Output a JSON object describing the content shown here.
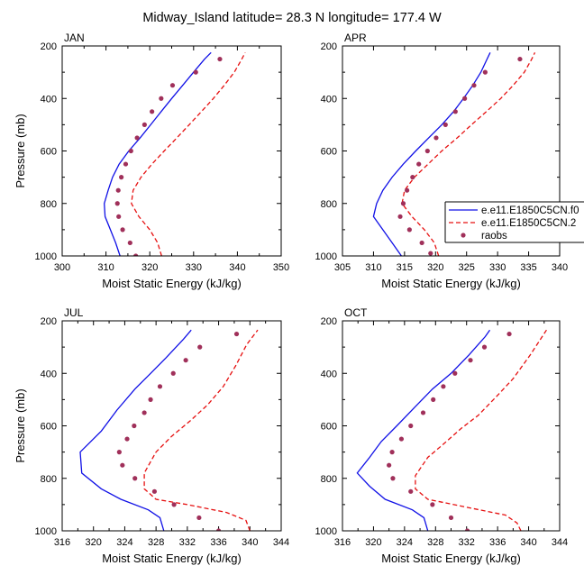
{
  "figure": {
    "title": "Midway_Island  latitude= 28.3 N longitude= 177.4 W"
  },
  "legend": {
    "placement": "right of APR panel",
    "entries": [
      {
        "label": "e.e11.E1850C5CN.f0",
        "color": "#1010e6",
        "style": "solid"
      },
      {
        "label": "e.e11.E1850C5CN.2",
        "color": "#e61010",
        "style": "dashed"
      },
      {
        "label": "raobs",
        "color": "#a0305a",
        "style": "marker"
      }
    ]
  },
  "colors": {
    "series1": "#1010e6",
    "series2": "#e61010",
    "raobs": "#a0305a"
  },
  "chart_data": [
    {
      "type": "line",
      "panel": "JAN",
      "xlabel": "Moist Static Energy (kJ/kg)",
      "ylabel": "Pressure (mb)",
      "xlim": [
        300,
        350
      ],
      "ylim": [
        1000,
        200
      ],
      "y_inverted": true,
      "xticks": [
        300,
        305,
        310,
        315,
        320,
        325,
        330,
        335,
        340,
        345,
        350
      ],
      "xtick_labels": [
        "300",
        "310",
        "320",
        "330",
        "340",
        "350"
      ],
      "yticks": [
        200,
        400,
        600,
        800,
        1000
      ],
      "series": [
        {
          "values": [
            [
              313.2,
              1000
            ],
            [
              312.2,
              950
            ],
            [
              311.0,
              900
            ],
            [
              309.8,
              850
            ],
            [
              309.6,
              800
            ],
            [
              310.5,
              750
            ],
            [
              311.5,
              700
            ],
            [
              313.0,
              650
            ],
            [
              315.2,
              600
            ],
            [
              317.8,
              550
            ],
            [
              320.2,
              500
            ],
            [
              322.6,
              450
            ],
            [
              325.0,
              400
            ],
            [
              327.5,
              350
            ],
            [
              330.0,
              300
            ],
            [
              332.5,
              250
            ],
            [
              334.0,
              225
            ]
          ]
        },
        {
          "values": [
            [
              322.7,
              1000
            ],
            [
              321.8,
              950
            ],
            [
              320.0,
              900
            ],
            [
              317.5,
              850
            ],
            [
              315.8,
              800
            ],
            [
              316.2,
              750
            ],
            [
              318.0,
              700
            ],
            [
              320.5,
              650
            ],
            [
              323.3,
              600
            ],
            [
              326.2,
              550
            ],
            [
              329.0,
              500
            ],
            [
              331.8,
              450
            ],
            [
              334.5,
              400
            ],
            [
              337.0,
              350
            ],
            [
              339.3,
              300
            ],
            [
              341.0,
              250
            ],
            [
              341.8,
              225
            ]
          ]
        },
        {
          "markers": true,
          "values": [
            [
              316.8,
              1000
            ],
            [
              315.5,
              950
            ],
            [
              313.8,
              900
            ],
            [
              312.9,
              850
            ],
            [
              312.6,
              800
            ],
            [
              312.8,
              750
            ],
            [
              313.5,
              700
            ],
            [
              314.5,
              650
            ],
            [
              315.7,
              600
            ],
            [
              317.1,
              550
            ],
            [
              318.8,
              500
            ],
            [
              320.5,
              450
            ],
            [
              322.6,
              400
            ],
            [
              325.2,
              350
            ],
            [
              330.5,
              300
            ],
            [
              336.0,
              250
            ]
          ]
        }
      ]
    },
    {
      "type": "line",
      "panel": "APR",
      "xlabel": "Moist Static Energy (kJ/kg)",
      "ylabel": "",
      "xlim": [
        305,
        340
      ],
      "ylim": [
        1000,
        200
      ],
      "y_inverted": true,
      "xticks": [
        305,
        310,
        315,
        320,
        325,
        330,
        335,
        340
      ],
      "xtick_labels": [
        "305",
        "310",
        "315",
        "320",
        "325",
        "330",
        "335",
        "340"
      ],
      "yticks": [
        200,
        400,
        600,
        800,
        1000
      ],
      "series": [
        {
          "values": [
            [
              314.5,
              1000
            ],
            [
              313.0,
              950
            ],
            [
              311.5,
              900
            ],
            [
              310.0,
              850
            ],
            [
              310.5,
              800
            ],
            [
              311.5,
              750
            ],
            [
              313.0,
              700
            ],
            [
              314.8,
              650
            ],
            [
              316.8,
              600
            ],
            [
              318.9,
              550
            ],
            [
              321.0,
              500
            ],
            [
              322.9,
              450
            ],
            [
              324.5,
              400
            ],
            [
              326.0,
              350
            ],
            [
              327.3,
              300
            ],
            [
              328.3,
              250
            ],
            [
              328.8,
              225
            ]
          ]
        },
        {
          "values": [
            [
              320.5,
              1000
            ],
            [
              319.8,
              950
            ],
            [
              318.2,
              900
            ],
            [
              316.2,
              850
            ],
            [
              314.6,
              800
            ],
            [
              315.0,
              750
            ],
            [
              316.6,
              700
            ],
            [
              318.8,
              650
            ],
            [
              321.0,
              600
            ],
            [
              323.5,
              550
            ],
            [
              325.8,
              500
            ],
            [
              328.2,
              450
            ],
            [
              330.5,
              400
            ],
            [
              332.5,
              350
            ],
            [
              334.3,
              300
            ],
            [
              335.5,
              250
            ],
            [
              336.0,
              225
            ]
          ]
        },
        {
          "markers": true,
          "values": [
            [
              319.2,
              990
            ],
            [
              317.8,
              950
            ],
            [
              315.8,
              900
            ],
            [
              314.3,
              850
            ],
            [
              314.8,
              800
            ],
            [
              315.4,
              750
            ],
            [
              316.3,
              700
            ],
            [
              317.3,
              650
            ],
            [
              318.7,
              600
            ],
            [
              320.1,
              550
            ],
            [
              321.6,
              500
            ],
            [
              323.2,
              450
            ],
            [
              324.7,
              400
            ],
            [
              326.2,
              350
            ],
            [
              328.0,
              300
            ],
            [
              333.6,
              250
            ]
          ]
        }
      ]
    },
    {
      "type": "line",
      "panel": "JUL",
      "xlabel": "Moist Static Energy (kJ/kg)",
      "ylabel": "Pressure (mb)",
      "xlim": [
        316,
        344
      ],
      "ylim": [
        1000,
        200
      ],
      "y_inverted": true,
      "xticks": [
        316,
        318,
        320,
        322,
        324,
        326,
        328,
        330,
        332,
        334,
        336,
        338,
        340,
        342,
        344
      ],
      "xtick_labels": [
        "316",
        "320",
        "324",
        "328",
        "332",
        "336",
        "340",
        "344"
      ],
      "yticks": [
        200,
        400,
        600,
        800,
        1000
      ],
      "series": [
        {
          "values": [
            [
              329.0,
              1000
            ],
            [
              328.5,
              950
            ],
            [
              327.0,
              920
            ],
            [
              323.5,
              880
            ],
            [
              321.0,
              840
            ],
            [
              318.5,
              780
            ],
            [
              318.3,
              700
            ],
            [
              321.0,
              620
            ],
            [
              323.0,
              540
            ],
            [
              325.3,
              460
            ],
            [
              327.3,
              400
            ],
            [
              329.3,
              340
            ],
            [
              331.5,
              270
            ],
            [
              332.5,
              235
            ]
          ]
        },
        {
          "values": [
            [
              340.0,
              1000
            ],
            [
              339.5,
              960
            ],
            [
              337.0,
              930
            ],
            [
              332.0,
              900
            ],
            [
              328.0,
              880
            ],
            [
              326.5,
              840
            ],
            [
              326.5,
              780
            ],
            [
              328.0,
              700
            ],
            [
              330.0,
              640
            ],
            [
              332.4,
              580
            ],
            [
              334.6,
              520
            ],
            [
              336.6,
              450
            ],
            [
              338.2,
              370
            ],
            [
              339.6,
              290
            ],
            [
              341.0,
              235
            ]
          ]
        },
        {
          "markers": true,
          "values": [
            [
              336.0,
              1000
            ],
            [
              333.5,
              950
            ],
            [
              330.3,
              900
            ],
            [
              327.8,
              850
            ],
            [
              325.3,
              800
            ],
            [
              323.7,
              750
            ],
            [
              323.3,
              700
            ],
            [
              324.3,
              650
            ],
            [
              325.2,
              600
            ],
            [
              326.5,
              550
            ],
            [
              327.3,
              500
            ],
            [
              328.5,
              450
            ],
            [
              330.2,
              400
            ],
            [
              331.8,
              350
            ],
            [
              333.6,
              300
            ],
            [
              338.3,
              250
            ]
          ]
        }
      ]
    },
    {
      "type": "line",
      "panel": "OCT",
      "xlabel": "Moist Static Energy (kJ/kg)",
      "ylabel": "",
      "xlim": [
        316,
        344
      ],
      "ylim": [
        1000,
        200
      ],
      "y_inverted": true,
      "xticks": [
        316,
        318,
        320,
        322,
        324,
        326,
        328,
        330,
        332,
        334,
        336,
        338,
        340,
        342,
        344
      ],
      "xtick_labels": [
        "316",
        "320",
        "324",
        "328",
        "332",
        "336",
        "340",
        "344"
      ],
      "yticks": [
        200,
        400,
        600,
        800,
        1000
      ],
      "series": [
        {
          "values": [
            [
              327.0,
              1000
            ],
            [
              326.5,
              950
            ],
            [
              325.0,
              920
            ],
            [
              321.5,
              880
            ],
            [
              319.5,
              830
            ],
            [
              317.9,
              780
            ],
            [
              319.5,
              720
            ],
            [
              321.0,
              660
            ],
            [
              323.0,
              600
            ],
            [
              325.3,
              530
            ],
            [
              327.6,
              460
            ],
            [
              330.0,
              400
            ],
            [
              332.3,
              330
            ],
            [
              334.4,
              260
            ],
            [
              335.0,
              235
            ]
          ]
        },
        {
          "values": [
            [
              339.0,
              1000
            ],
            [
              338.5,
              970
            ],
            [
              337.0,
              940
            ],
            [
              332.0,
              910
            ],
            [
              327.0,
              880
            ],
            [
              325.4,
              840
            ],
            [
              325.4,
              790
            ],
            [
              327.0,
              720
            ],
            [
              329.0,
              670
            ],
            [
              331.3,
              610
            ],
            [
              333.5,
              560
            ],
            [
              335.8,
              490
            ],
            [
              338.0,
              420
            ],
            [
              340.2,
              330
            ],
            [
              342.3,
              235
            ]
          ]
        },
        {
          "markers": true,
          "values": [
            [
              332.1,
              1000
            ],
            [
              330.0,
              950
            ],
            [
              327.6,
              900
            ],
            [
              324.8,
              850
            ],
            [
              322.5,
              800
            ],
            [
              322.0,
              750
            ],
            [
              322.4,
              700
            ],
            [
              323.6,
              650
            ],
            [
              324.8,
              600
            ],
            [
              326.4,
              550
            ],
            [
              327.7,
              500
            ],
            [
              329.0,
              450
            ],
            [
              330.5,
              400
            ],
            [
              332.5,
              350
            ],
            [
              334.3,
              300
            ],
            [
              337.5,
              250
            ]
          ]
        }
      ]
    }
  ]
}
